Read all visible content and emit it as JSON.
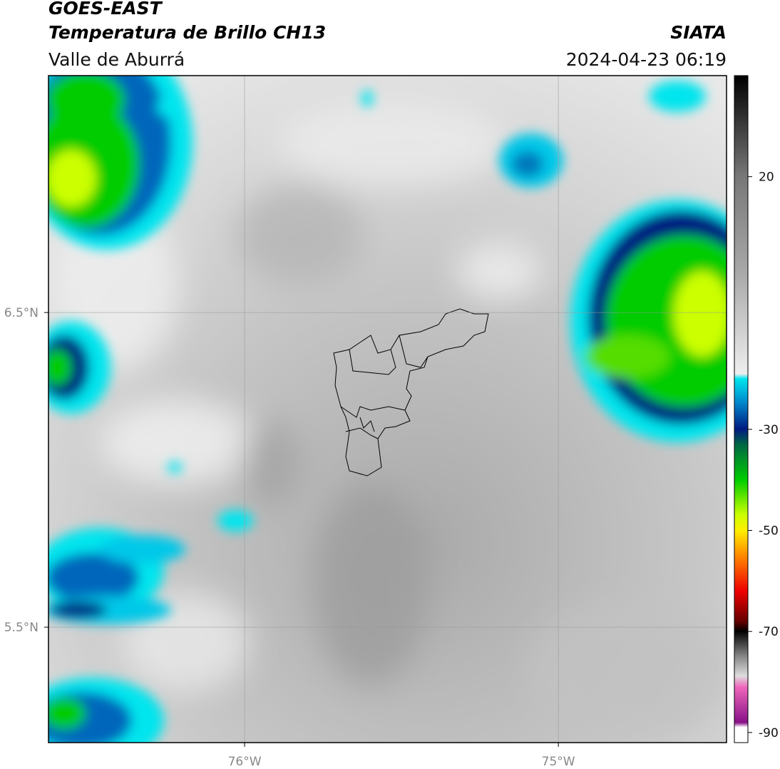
{
  "header": {
    "satellite": "GOES-EAST",
    "product": "Temperatura de Brillo CH13",
    "region": "Valle de Aburrá",
    "source": "SIATA",
    "datetime": "2024-04-23 06:19"
  },
  "map": {
    "xlim": [
      -76.625,
      -74.464
    ],
    "ylim": [
      5.133,
      7.253
    ],
    "xticks": [
      {
        "value": -76,
        "label": "76°W"
      },
      {
        "value": -75,
        "label": "75°W"
      }
    ],
    "yticks": [
      {
        "value": 5.5,
        "label": "5.5°N"
      },
      {
        "value": 6.5,
        "label": "6.5°N"
      }
    ],
    "grid": true
  },
  "colorbar": {
    "lim": [
      -92,
      40
    ],
    "ticks": [
      -90,
      -70,
      -50,
      -30,
      20
    ]
  }
}
